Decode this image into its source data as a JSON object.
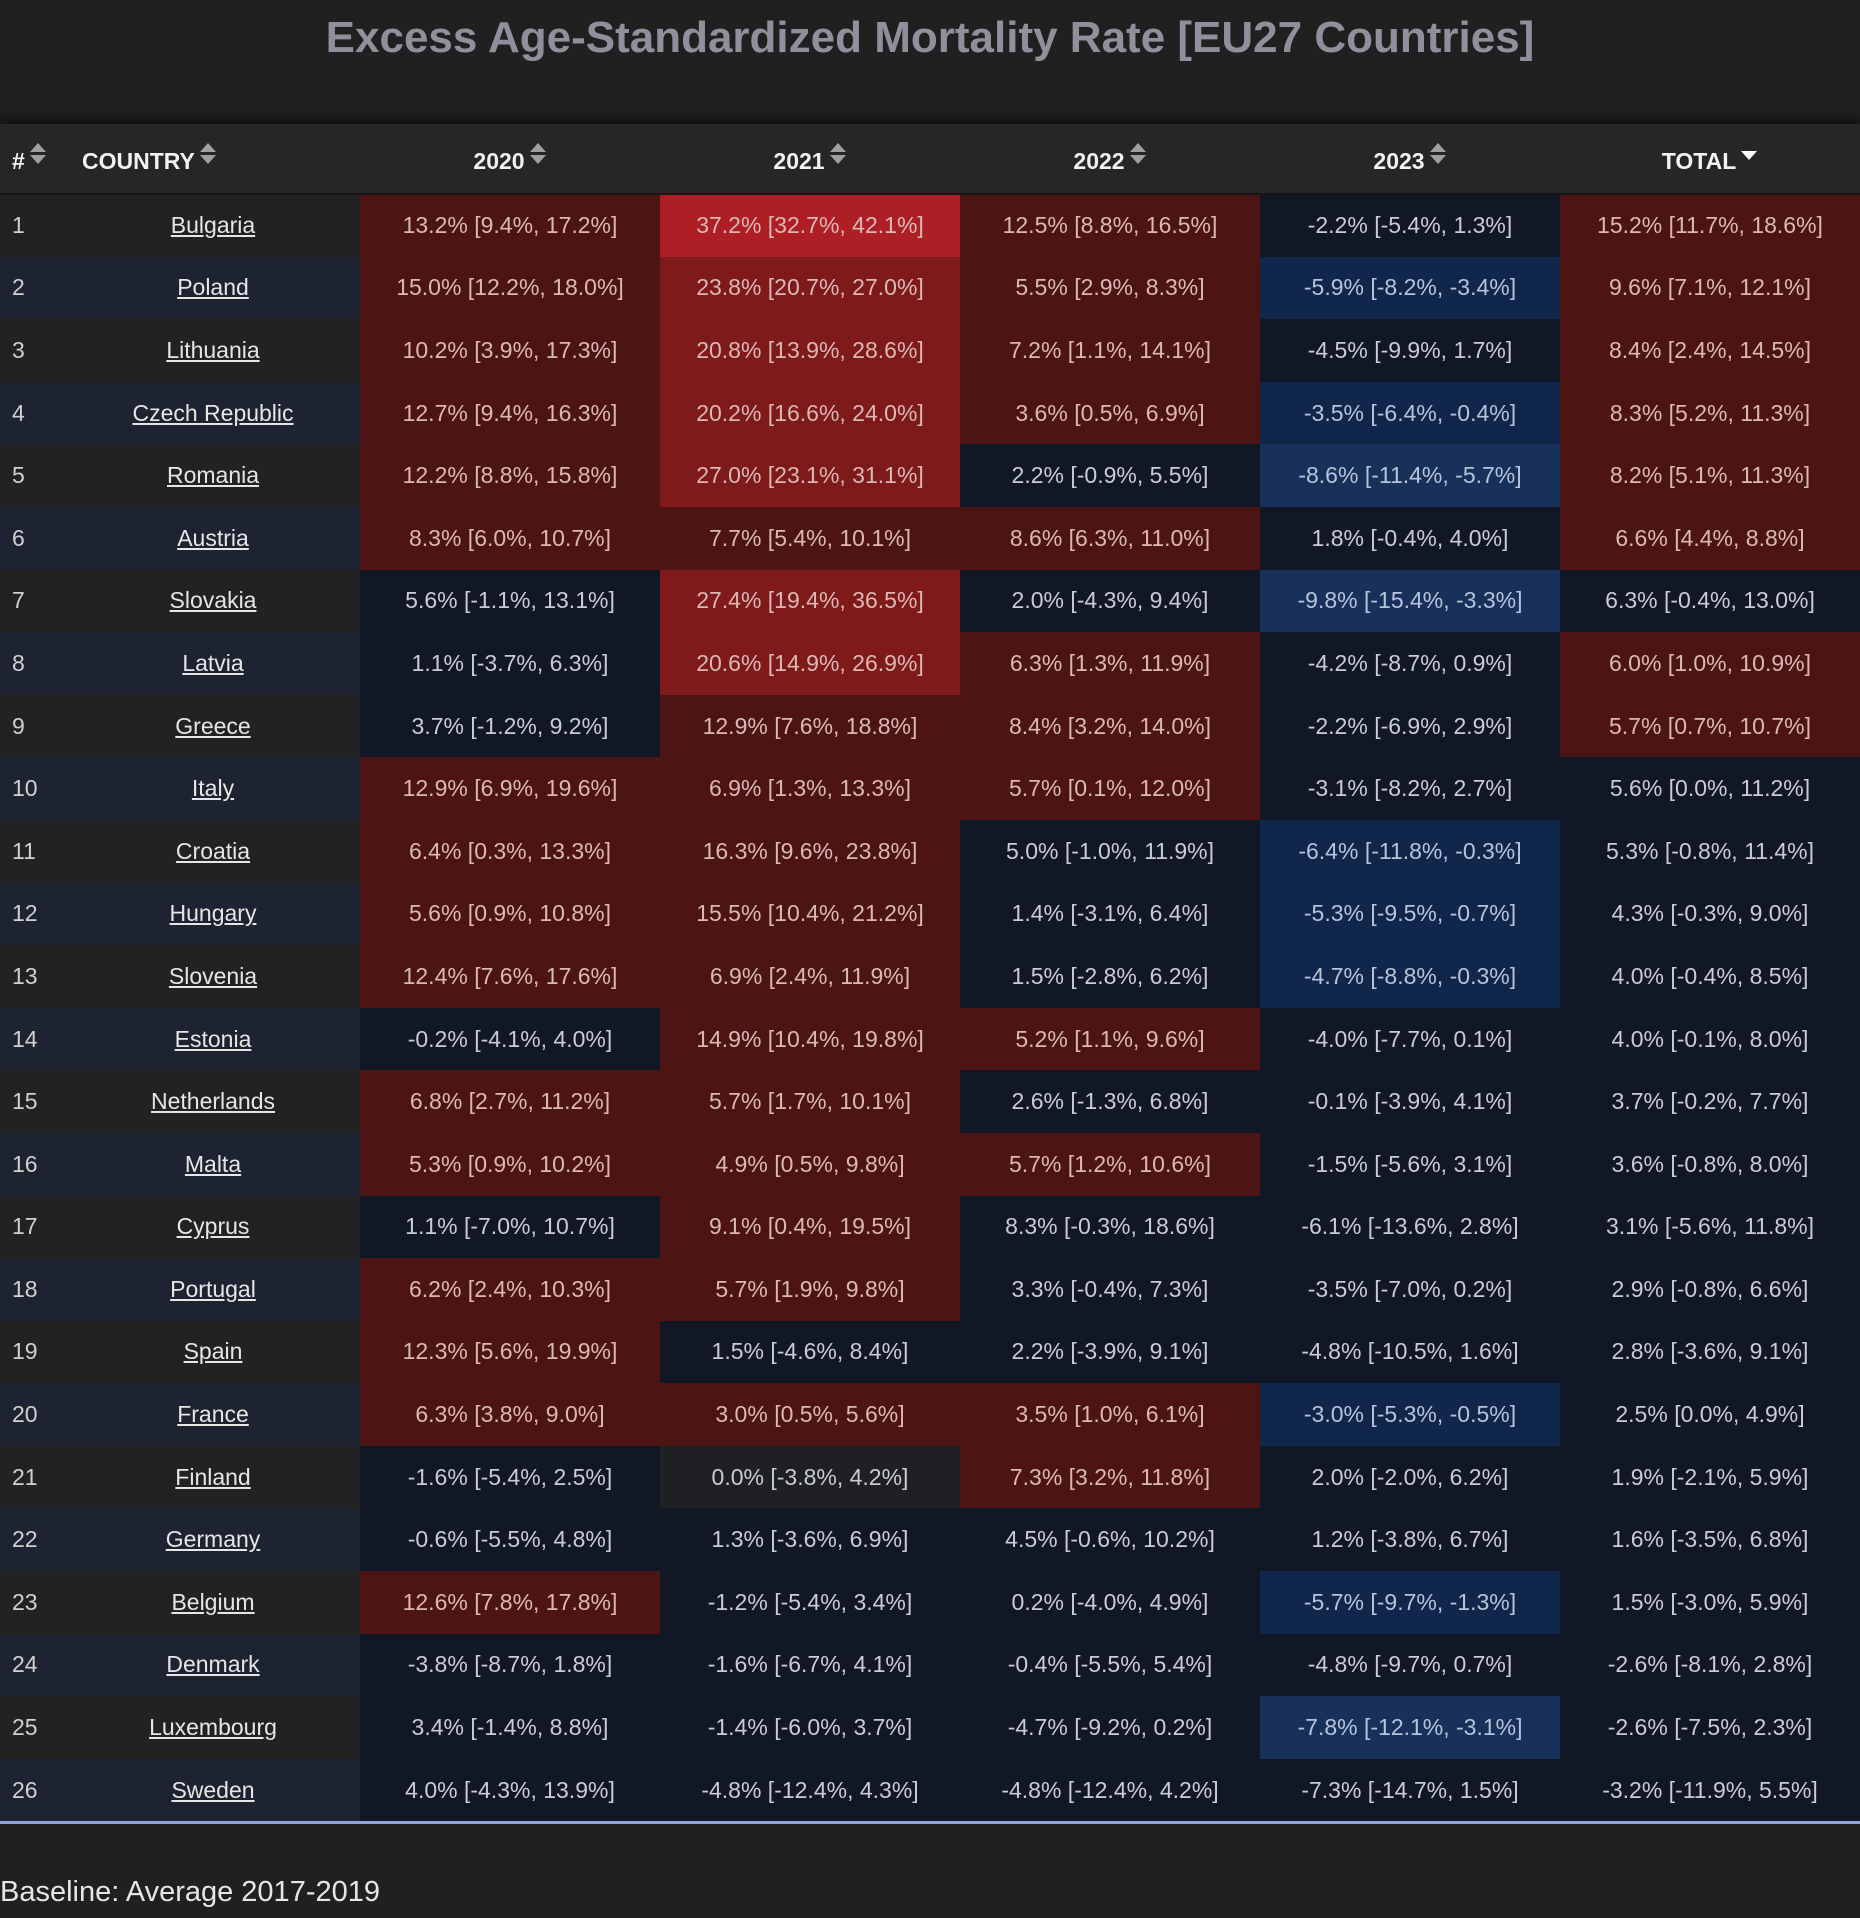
{
  "title": "Excess Age-Standardized Mortality Rate [EU27 Countries]",
  "baseline_note": "Baseline: Average 2017-2019",
  "colors": {
    "red_3": "#ad1f24",
    "red_2": "#7e1a1a",
    "red_1": "#4c1514",
    "neutral": "#111725",
    "grey": "#1f2023",
    "blue_1": "#11264b",
    "blue_2": "#18315b"
  },
  "chart_data": {
    "type": "table",
    "title": "Excess Age-Standardized Mortality Rate [EU27 Countries]",
    "columns": [
      {
        "key": "num",
        "label": "#",
        "sortable": true
      },
      {
        "key": "country",
        "label": "COUNTRY",
        "sortable": true
      },
      {
        "key": "y2020",
        "label": "2020",
        "sortable": true
      },
      {
        "key": "y2021",
        "label": "2021",
        "sortable": true
      },
      {
        "key": "y2022",
        "label": "2022",
        "sortable": true
      },
      {
        "key": "y2023",
        "label": "2023",
        "sortable": true
      },
      {
        "key": "total",
        "label": "TOTAL",
        "sortable": true,
        "sorted": "desc"
      }
    ],
    "rows": [
      {
        "num": "1",
        "country": "Bulgaria",
        "y2020": "13.2% [9.4%, 17.2%]",
        "y2021": "37.2% [32.7%, 42.1%]",
        "y2022": "12.5% [8.8%, 16.5%]",
        "y2023": "-2.2% [-5.4%, 1.3%]",
        "total": "15.2% [11.7%, 18.6%]"
      },
      {
        "num": "2",
        "country": "Poland",
        "y2020": "15.0% [12.2%, 18.0%]",
        "y2021": "23.8% [20.7%, 27.0%]",
        "y2022": "5.5% [2.9%, 8.3%]",
        "y2023": "-5.9% [-8.2%, -3.4%]",
        "total": "9.6% [7.1%, 12.1%]"
      },
      {
        "num": "3",
        "country": "Lithuania",
        "y2020": "10.2% [3.9%, 17.3%]",
        "y2021": "20.8% [13.9%, 28.6%]",
        "y2022": "7.2% [1.1%, 14.1%]",
        "y2023": "-4.5% [-9.9%, 1.7%]",
        "total": "8.4% [2.4%, 14.5%]"
      },
      {
        "num": "4",
        "country": "Czech Republic",
        "y2020": "12.7% [9.4%, 16.3%]",
        "y2021": "20.2% [16.6%, 24.0%]",
        "y2022": "3.6% [0.5%, 6.9%]",
        "y2023": "-3.5% [-6.4%, -0.4%]",
        "total": "8.3% [5.2%, 11.3%]"
      },
      {
        "num": "5",
        "country": "Romania",
        "y2020": "12.2% [8.8%, 15.8%]",
        "y2021": "27.0% [23.1%, 31.1%]",
        "y2022": "2.2% [-0.9%, 5.5%]",
        "y2023": "-8.6% [-11.4%, -5.7%]",
        "total": "8.2% [5.1%, 11.3%]"
      },
      {
        "num": "6",
        "country": "Austria",
        "y2020": "8.3% [6.0%, 10.7%]",
        "y2021": "7.7% [5.4%, 10.1%]",
        "y2022": "8.6% [6.3%, 11.0%]",
        "y2023": "1.8% [-0.4%, 4.0%]",
        "total": "6.6% [4.4%, 8.8%]"
      },
      {
        "num": "7",
        "country": "Slovakia",
        "y2020": "5.6% [-1.1%, 13.1%]",
        "y2021": "27.4% [19.4%, 36.5%]",
        "y2022": "2.0% [-4.3%, 9.4%]",
        "y2023": "-9.8% [-15.4%, -3.3%]",
        "total": "6.3% [-0.4%, 13.0%]"
      },
      {
        "num": "8",
        "country": "Latvia",
        "y2020": "1.1% [-3.7%, 6.3%]",
        "y2021": "20.6% [14.9%, 26.9%]",
        "y2022": "6.3% [1.3%, 11.9%]",
        "y2023": "-4.2% [-8.7%, 0.9%]",
        "total": "6.0% [1.0%, 10.9%]"
      },
      {
        "num": "9",
        "country": "Greece",
        "y2020": "3.7% [-1.2%, 9.2%]",
        "y2021": "12.9% [7.6%, 18.8%]",
        "y2022": "8.4% [3.2%, 14.0%]",
        "y2023": "-2.2% [-6.9%, 2.9%]",
        "total": "5.7% [0.7%, 10.7%]"
      },
      {
        "num": "10",
        "country": "Italy",
        "y2020": "12.9% [6.9%, 19.6%]",
        "y2021": "6.9% [1.3%, 13.3%]",
        "y2022": "5.7% [0.1%, 12.0%]",
        "y2023": "-3.1% [-8.2%, 2.7%]",
        "total": "5.6% [0.0%, 11.2%]"
      },
      {
        "num": "11",
        "country": "Croatia",
        "y2020": "6.4% [0.3%, 13.3%]",
        "y2021": "16.3% [9.6%, 23.8%]",
        "y2022": "5.0% [-1.0%, 11.9%]",
        "y2023": "-6.4% [-11.8%, -0.3%]",
        "total": "5.3% [-0.8%, 11.4%]"
      },
      {
        "num": "12",
        "country": "Hungary",
        "y2020": "5.6% [0.9%, 10.8%]",
        "y2021": "15.5% [10.4%, 21.2%]",
        "y2022": "1.4% [-3.1%, 6.4%]",
        "y2023": "-5.3% [-9.5%, -0.7%]",
        "total": "4.3% [-0.3%, 9.0%]"
      },
      {
        "num": "13",
        "country": "Slovenia",
        "y2020": "12.4% [7.6%, 17.6%]",
        "y2021": "6.9% [2.4%, 11.9%]",
        "y2022": "1.5% [-2.8%, 6.2%]",
        "y2023": "-4.7% [-8.8%, -0.3%]",
        "total": "4.0% [-0.4%, 8.5%]"
      },
      {
        "num": "14",
        "country": "Estonia",
        "y2020": "-0.2% [-4.1%, 4.0%]",
        "y2021": "14.9% [10.4%, 19.8%]",
        "y2022": "5.2% [1.1%, 9.6%]",
        "y2023": "-4.0% [-7.7%, 0.1%]",
        "total": "4.0% [-0.1%, 8.0%]"
      },
      {
        "num": "15",
        "country": "Netherlands",
        "y2020": "6.8% [2.7%, 11.2%]",
        "y2021": "5.7% [1.7%, 10.1%]",
        "y2022": "2.6% [-1.3%, 6.8%]",
        "y2023": "-0.1% [-3.9%, 4.1%]",
        "total": "3.7% [-0.2%, 7.7%]"
      },
      {
        "num": "16",
        "country": "Malta",
        "y2020": "5.3% [0.9%, 10.2%]",
        "y2021": "4.9% [0.5%, 9.8%]",
        "y2022": "5.7% [1.2%, 10.6%]",
        "y2023": "-1.5% [-5.6%, 3.1%]",
        "total": "3.6% [-0.8%, 8.0%]"
      },
      {
        "num": "17",
        "country": "Cyprus",
        "y2020": "1.1% [-7.0%, 10.7%]",
        "y2021": "9.1% [0.4%, 19.5%]",
        "y2022": "8.3% [-0.3%, 18.6%]",
        "y2023": "-6.1% [-13.6%, 2.8%]",
        "total": "3.1% [-5.6%, 11.8%]"
      },
      {
        "num": "18",
        "country": "Portugal",
        "y2020": "6.2% [2.4%, 10.3%]",
        "y2021": "5.7% [1.9%, 9.8%]",
        "y2022": "3.3% [-0.4%, 7.3%]",
        "y2023": "-3.5% [-7.0%, 0.2%]",
        "total": "2.9% [-0.8%, 6.6%]"
      },
      {
        "num": "19",
        "country": "Spain",
        "y2020": "12.3% [5.6%, 19.9%]",
        "y2021": "1.5% [-4.6%, 8.4%]",
        "y2022": "2.2% [-3.9%, 9.1%]",
        "y2023": "-4.8% [-10.5%, 1.6%]",
        "total": "2.8% [-3.6%, 9.1%]"
      },
      {
        "num": "20",
        "country": "France",
        "y2020": "6.3% [3.8%, 9.0%]",
        "y2021": "3.0% [0.5%, 5.6%]",
        "y2022": "3.5% [1.0%, 6.1%]",
        "y2023": "-3.0% [-5.3%, -0.5%]",
        "total": "2.5% [0.0%, 4.9%]"
      },
      {
        "num": "21",
        "country": "Finland",
        "y2020": "-1.6% [-5.4%, 2.5%]",
        "y2021": "0.0% [-3.8%, 4.2%]",
        "y2022": "7.3% [3.2%, 11.8%]",
        "y2023": "2.0% [-2.0%, 6.2%]",
        "total": "1.9% [-2.1%, 5.9%]"
      },
      {
        "num": "22",
        "country": "Germany",
        "y2020": "-0.6% [-5.5%, 4.8%]",
        "y2021": "1.3% [-3.6%, 6.9%]",
        "y2022": "4.5% [-0.6%, 10.2%]",
        "y2023": "1.2% [-3.8%, 6.7%]",
        "total": "1.6% [-3.5%, 6.8%]"
      },
      {
        "num": "23",
        "country": "Belgium",
        "y2020": "12.6% [7.8%, 17.8%]",
        "y2021": "-1.2% [-5.4%, 3.4%]",
        "y2022": "0.2% [-4.0%, 4.9%]",
        "y2023": "-5.7% [-9.7%, -1.3%]",
        "total": "1.5% [-3.0%, 5.9%]"
      },
      {
        "num": "24",
        "country": "Denmark",
        "y2020": "-3.8% [-8.7%, 1.8%]",
        "y2021": "-1.6% [-6.7%, 4.1%]",
        "y2022": "-0.4% [-5.5%, 5.4%]",
        "y2023": "-4.8% [-9.7%, 0.7%]",
        "total": "-2.6% [-8.1%, 2.8%]"
      },
      {
        "num": "25",
        "country": "Luxembourg",
        "y2020": "3.4% [-1.4%, 8.8%]",
        "y2021": "-1.4% [-6.0%, 3.7%]",
        "y2022": "-4.7% [-9.2%, 0.2%]",
        "y2023": "-7.8% [-12.1%, -3.1%]",
        "total": "-2.6% [-7.5%, 2.3%]"
      },
      {
        "num": "26",
        "country": "Sweden",
        "y2020": "4.0% [-4.3%, 13.9%]",
        "y2021": "-4.8% [-12.4%, 4.3%]",
        "y2022": "-4.8% [-12.4%, 4.2%]",
        "y2023": "-7.3% [-14.7%, 1.5%]",
        "total": "-3.2% [-11.9%, 5.5%]"
      }
    ]
  }
}
